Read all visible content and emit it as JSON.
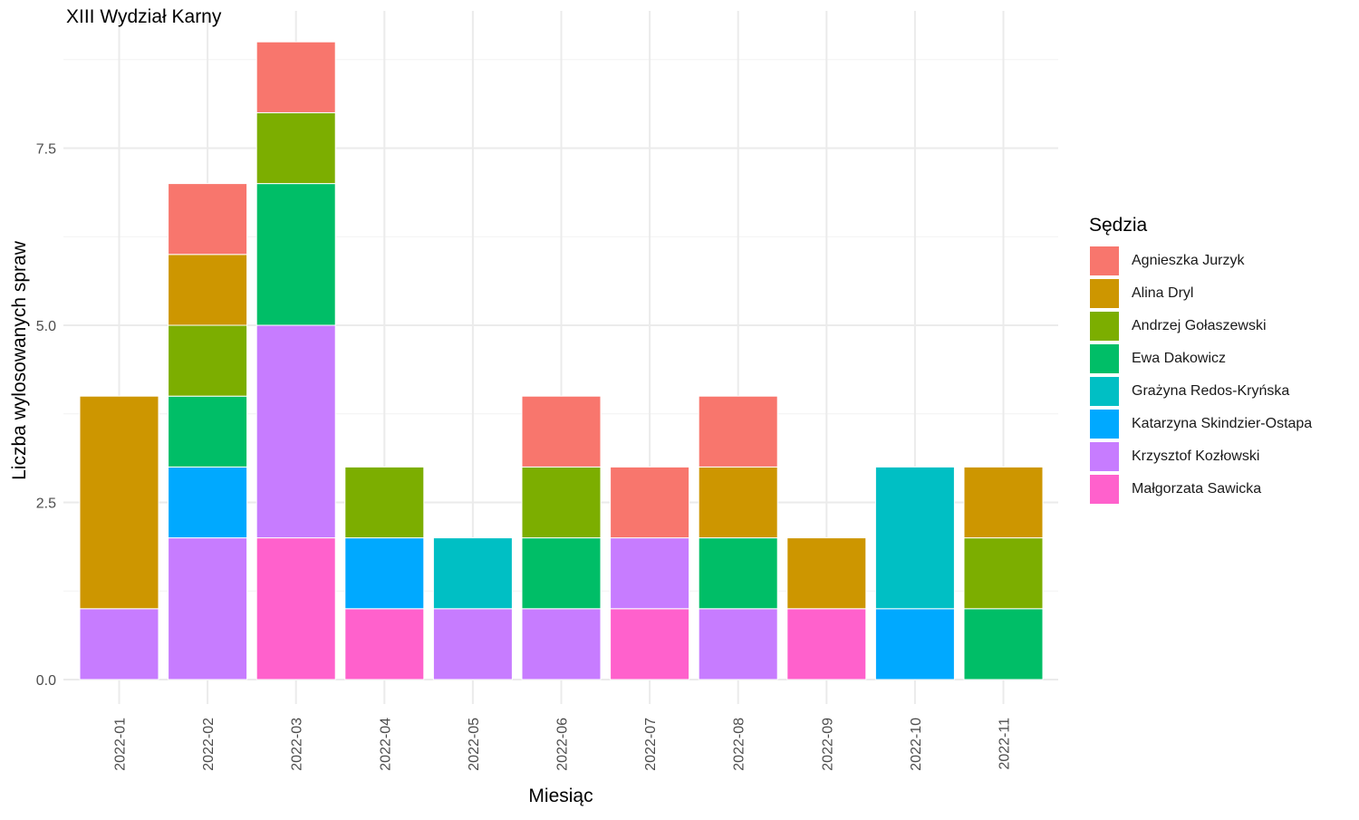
{
  "chart_data": {
    "type": "bar",
    "stacked": true,
    "title": "XIII Wydział Karny",
    "xlabel": "Miesiąc",
    "ylabel": "Liczba wylosowanych spraw",
    "ylim": [
      0,
      9.45
    ],
    "yticks": [
      0,
      2.5,
      5,
      7.5
    ],
    "ytick_labels": [
      "0.0",
      "2.5",
      "5.0",
      "7.5"
    ],
    "grid": true,
    "legend_position": "right",
    "legend_title": "Sędzia",
    "categories": [
      "2022-01",
      "2022-02",
      "2022-03",
      "2022-04",
      "2022-05",
      "2022-06",
      "2022-07",
      "2022-08",
      "2022-09",
      "2022-10",
      "2022-11"
    ],
    "series": [
      {
        "name": "Agnieszka Jurzyk",
        "color": "#F8766D",
        "values": [
          0,
          1,
          1,
          0,
          0,
          1,
          1,
          1,
          0,
          0,
          0
        ]
      },
      {
        "name": "Alina Dryl",
        "color": "#CD9600",
        "values": [
          3,
          1,
          0,
          0,
          0,
          0,
          0,
          1,
          1,
          0,
          1
        ]
      },
      {
        "name": "Andrzej Gołaszewski",
        "color": "#7CAE00",
        "values": [
          0,
          1,
          1,
          1,
          0,
          1,
          0,
          0,
          0,
          0,
          1
        ]
      },
      {
        "name": "Ewa Dakowicz",
        "color": "#00BE67",
        "values": [
          0,
          1,
          2,
          0,
          0,
          1,
          0,
          1,
          0,
          0,
          1
        ]
      },
      {
        "name": "Grażyna Redos-Kryńska",
        "color": "#00BFC4",
        "values": [
          0,
          0,
          0,
          0,
          1,
          0,
          0,
          0,
          0,
          2,
          0
        ]
      },
      {
        "name": "Katarzyna Skindzier-Ostapa",
        "color": "#00A9FF",
        "values": [
          0,
          1,
          0,
          1,
          0,
          0,
          0,
          0,
          0,
          1,
          0
        ]
      },
      {
        "name": "Krzysztof Kozłowski",
        "color": "#C77CFF",
        "values": [
          1,
          2,
          3,
          0,
          1,
          1,
          1,
          1,
          0,
          0,
          0
        ]
      },
      {
        "name": "Małgorzata Sawicka",
        "color": "#FF61CC",
        "values": [
          0,
          0,
          2,
          1,
          0,
          0,
          1,
          0,
          1,
          0,
          0
        ]
      }
    ]
  }
}
